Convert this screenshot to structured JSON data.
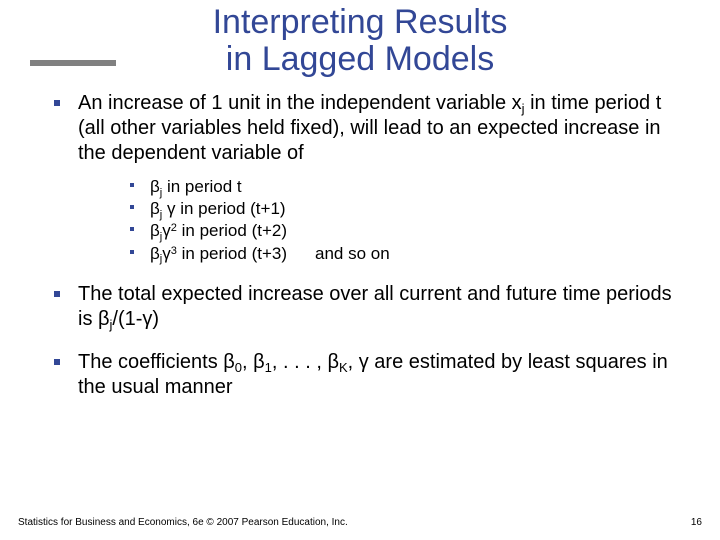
{
  "title": "Interpreting Results\nin Lagged Models",
  "colors": {
    "title": "#324796",
    "bullet": "#324796",
    "underline": "#808080",
    "text": "#000000",
    "background": "#ffffff"
  },
  "fonts": {
    "title_size": 34,
    "body_size": 20,
    "sub_body_size": 17,
    "footer_size": 10
  },
  "bullets": {
    "item1_html": "An increase of 1 unit in the independent variable x<span class='sub'>j</span> in time period t (all other variables held fixed), will lead to an expected increase in the dependent variable of",
    "sub1_html": "β<span class='sub'>j</span> in period t",
    "sub2_html": "β<span class='sub'>j</span> γ in period (t+1)",
    "sub3_html": "β<span class='sub'>j</span>γ<span class='sup'>2</span> in period (t+2)",
    "sub4_html": "β<span class='sub'>j</span>γ<span class='sup'>3</span> in period (t+3)<span class='tab'></span>and so on",
    "item2_html": "The total expected increase over all current and future time periods is β<span class='sub'>j</span>/(1-γ)",
    "item3_html": "The coefficients β<span class='sub'>0</span>, β<span class='sub'>1</span>, . . . , β<span class='sub'>K</span>, γ are estimated by least squares in the usual manner"
  },
  "footer": "Statistics for Business and Economics, 6e © 2007 Pearson Education, Inc.",
  "page_number": "16"
}
